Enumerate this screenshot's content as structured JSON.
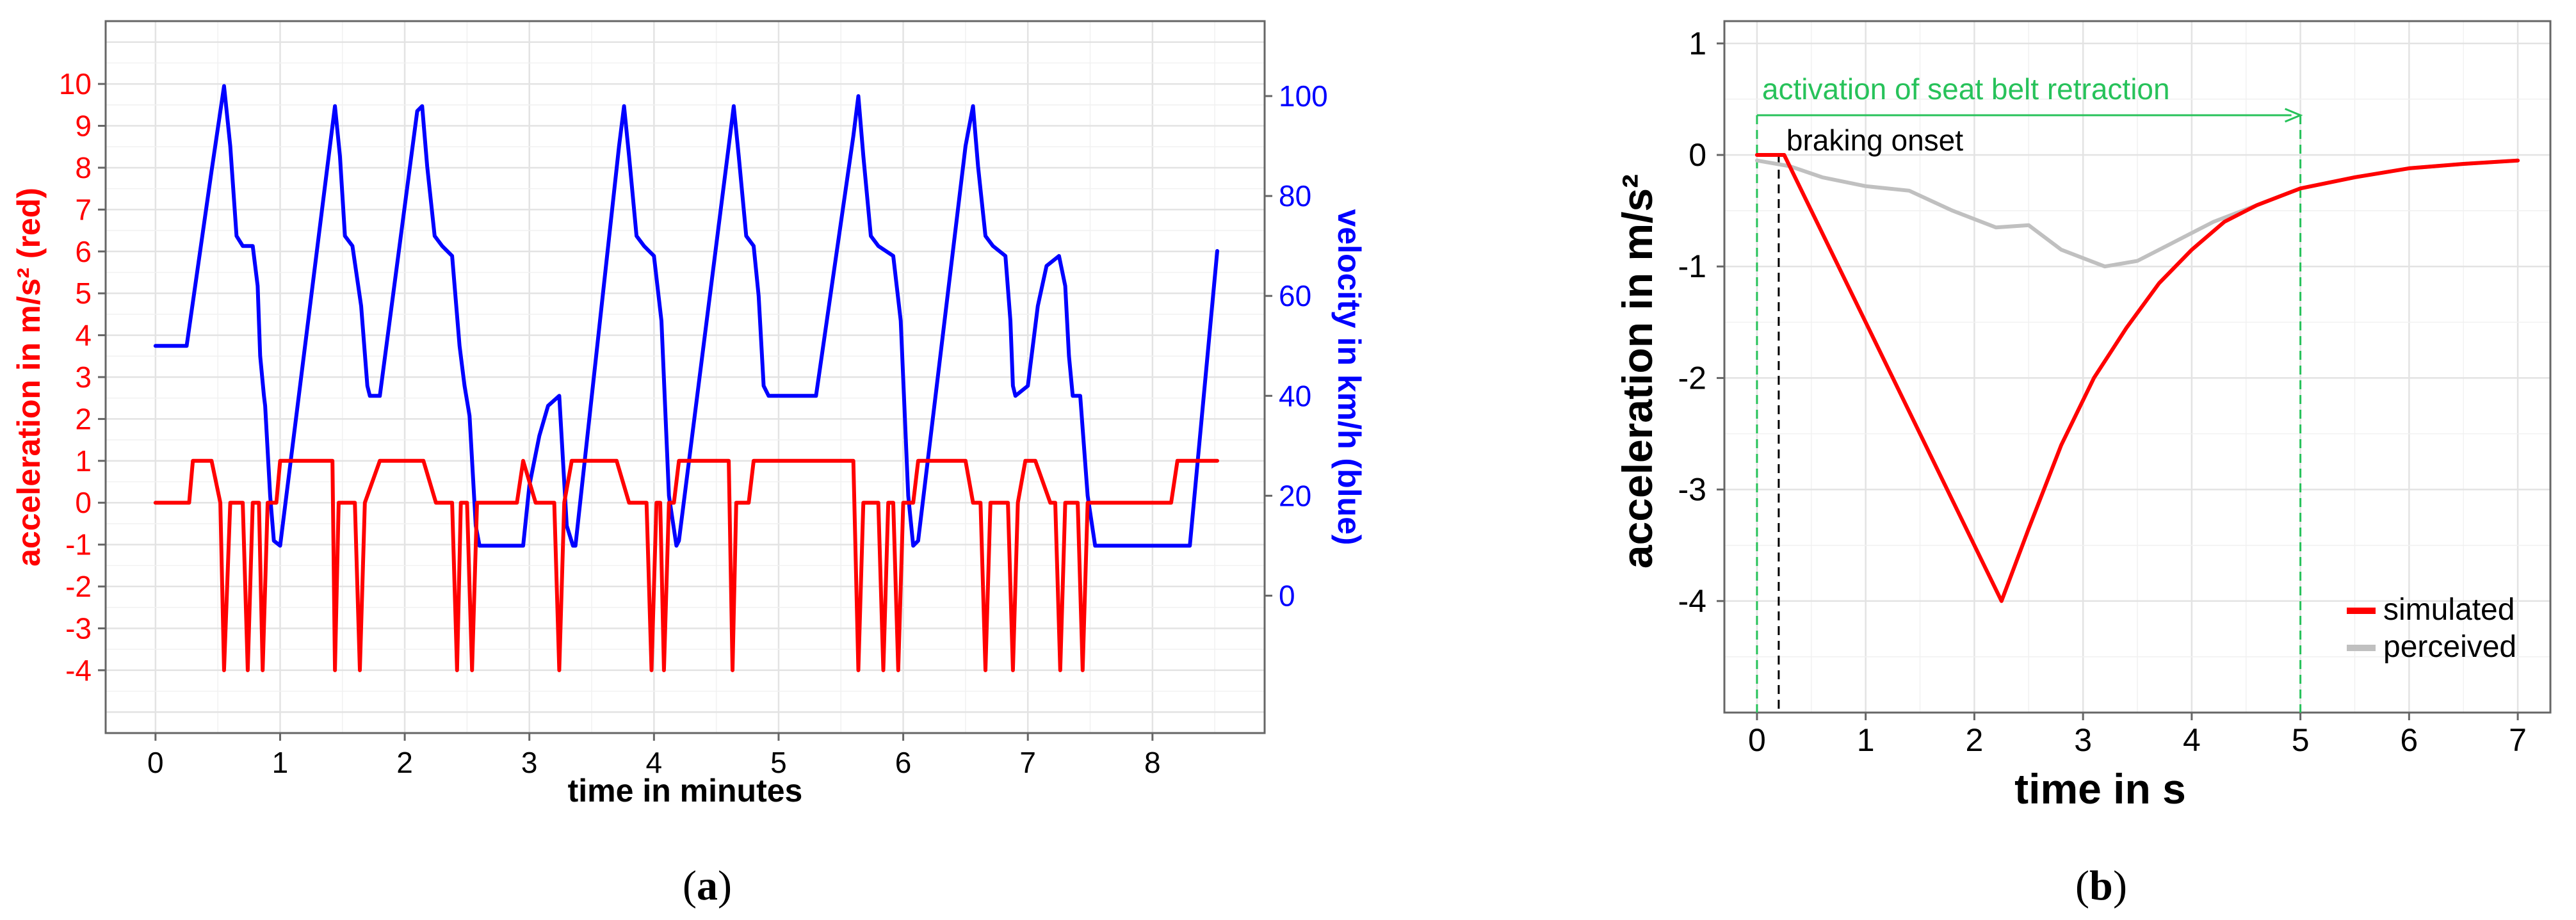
{
  "colors": {
    "red": "#ff0000",
    "blue": "#0000ff",
    "grid": "#e8e8e8",
    "frame": "#666666",
    "green": "#27c25a",
    "gray": "#c0c0c0",
    "black": "#000000"
  },
  "chart_data": [
    {
      "id": "a",
      "type": "line",
      "caption_letter": "a",
      "xlabel": "time in minutes",
      "ylabel_left": "acceleration in m/s² (red)",
      "ylabel_right": "velocity in km/h (blue)",
      "xlim": [
        -0.4,
        8.9
      ],
      "ylim_left": [
        -5.5,
        11.5
      ],
      "ylim_right": [
        -27.5,
        115
      ],
      "x_ticks": [
        0,
        1,
        2,
        3,
        4,
        5,
        6,
        7,
        8
      ],
      "y_left_ticks": [
        10,
        9,
        8,
        7,
        6,
        5,
        4,
        3,
        2,
        1,
        0,
        -1,
        -2,
        -3,
        -4
      ],
      "y_right_ticks": [
        100,
        80,
        60,
        40,
        20,
        0
      ],
      "grid": true,
      "series": [
        {
          "axis": "right",
          "color": "#0000ff",
          "points": [
            [
              0,
              50
            ],
            [
              0.25,
              50
            ],
            [
              0.45,
              85
            ],
            [
              0.55,
              102
            ],
            [
              0.6,
              90
            ],
            [
              0.65,
              72
            ],
            [
              0.7,
              70
            ],
            [
              0.78,
              70
            ],
            [
              0.82,
              62
            ],
            [
              0.84,
              48
            ],
            [
              0.87,
              40
            ],
            [
              0.88,
              38
            ],
            [
              0.92,
              20
            ],
            [
              0.95,
              11
            ],
            [
              1.0,
              10
            ],
            [
              1.4,
              90
            ],
            [
              1.44,
              98
            ],
            [
              1.48,
              88
            ],
            [
              1.52,
              72
            ],
            [
              1.58,
              70
            ],
            [
              1.65,
              58
            ],
            [
              1.7,
              42
            ],
            [
              1.72,
              40
            ],
            [
              1.8,
              40
            ],
            [
              2.1,
              97
            ],
            [
              2.14,
              98
            ],
            [
              2.18,
              86
            ],
            [
              2.24,
              72
            ],
            [
              2.3,
              70
            ],
            [
              2.38,
              68
            ],
            [
              2.44,
              50
            ],
            [
              2.48,
              42
            ],
            [
              2.52,
              36
            ],
            [
              2.57,
              14
            ],
            [
              2.6,
              10
            ],
            [
              2.95,
              10
            ],
            [
              3.0,
              22
            ],
            [
              3.08,
              32
            ],
            [
              3.15,
              38
            ],
            [
              3.24,
              40
            ],
            [
              3.3,
              14
            ],
            [
              3.35,
              10
            ],
            [
              3.37,
              10
            ],
            [
              3.72,
              90
            ],
            [
              3.76,
              98
            ],
            [
              3.8,
              88
            ],
            [
              3.86,
              72
            ],
            [
              3.92,
              70
            ],
            [
              4.0,
              68
            ],
            [
              4.06,
              55
            ],
            [
              4.12,
              20
            ],
            [
              4.18,
              10
            ],
            [
              4.2,
              11
            ],
            [
              4.6,
              90
            ],
            [
              4.64,
              98
            ],
            [
              4.68,
              88
            ],
            [
              4.74,
              72
            ],
            [
              4.8,
              70
            ],
            [
              4.84,
              60
            ],
            [
              4.88,
              42
            ],
            [
              4.92,
              40
            ],
            [
              5.3,
              40
            ],
            [
              5.6,
              92
            ],
            [
              5.64,
              100
            ],
            [
              5.68,
              88
            ],
            [
              5.74,
              72
            ],
            [
              5.8,
              70
            ],
            [
              5.92,
              68
            ],
            [
              5.98,
              55
            ],
            [
              6.04,
              20
            ],
            [
              6.08,
              10
            ],
            [
              6.12,
              11
            ],
            [
              6.5,
              90
            ],
            [
              6.56,
              98
            ],
            [
              6.6,
              86
            ],
            [
              6.66,
              72
            ],
            [
              6.72,
              70
            ],
            [
              6.82,
              68
            ],
            [
              6.86,
              55
            ],
            [
              6.88,
              42
            ],
            [
              6.9,
              40
            ],
            [
              7.0,
              42
            ],
            [
              7.08,
              58
            ],
            [
              7.15,
              66
            ],
            [
              7.25,
              68
            ],
            [
              7.3,
              62
            ],
            [
              7.33,
              48
            ],
            [
              7.36,
              40
            ],
            [
              7.42,
              40
            ],
            [
              7.48,
              20
            ],
            [
              7.54,
              10
            ],
            [
              7.6,
              10
            ],
            [
              8.3,
              10
            ],
            [
              8.52,
              69
            ]
          ]
        },
        {
          "axis": "left",
          "color": "#ff0000",
          "points": [
            [
              0,
              0
            ],
            [
              0.27,
              0
            ],
            [
              0.3,
              1
            ],
            [
              0.45,
              1
            ],
            [
              0.52,
              0
            ],
            [
              0.55,
              -4
            ],
            [
              0.6,
              0
            ],
            [
              0.7,
              0
            ],
            [
              0.74,
              -4
            ],
            [
              0.78,
              0
            ],
            [
              0.83,
              0
            ],
            [
              0.86,
              -4
            ],
            [
              0.9,
              0
            ],
            [
              0.97,
              0
            ],
            [
              1.0,
              1
            ],
            [
              1.42,
              1
            ],
            [
              1.44,
              -4
            ],
            [
              1.47,
              0
            ],
            [
              1.6,
              0
            ],
            [
              1.64,
              -4
            ],
            [
              1.68,
              0
            ],
            [
              1.8,
              1
            ],
            [
              2.15,
              1
            ],
            [
              2.25,
              0
            ],
            [
              2.38,
              0
            ],
            [
              2.42,
              -4
            ],
            [
              2.45,
              0
            ],
            [
              2.5,
              0
            ],
            [
              2.54,
              -4
            ],
            [
              2.58,
              0
            ],
            [
              2.9,
              0
            ],
            [
              2.95,
              1
            ],
            [
              3.05,
              0
            ],
            [
              3.2,
              0
            ],
            [
              3.24,
              -4
            ],
            [
              3.28,
              0
            ],
            [
              3.34,
              1
            ],
            [
              3.7,
              1
            ],
            [
              3.8,
              0
            ],
            [
              3.94,
              0
            ],
            [
              3.98,
              -4
            ],
            [
              4.02,
              0
            ],
            [
              4.05,
              0
            ],
            [
              4.08,
              -4
            ],
            [
              4.12,
              0
            ],
            [
              4.16,
              0
            ],
            [
              4.2,
              1
            ],
            [
              4.6,
              1
            ],
            [
              4.63,
              -4
            ],
            [
              4.66,
              0
            ],
            [
              4.76,
              0
            ],
            [
              4.8,
              1
            ],
            [
              5.6,
              1
            ],
            [
              5.64,
              -4
            ],
            [
              5.68,
              0
            ],
            [
              5.8,
              0
            ],
            [
              5.84,
              -4
            ],
            [
              5.88,
              0
            ],
            [
              5.92,
              0
            ],
            [
              5.96,
              -4
            ],
            [
              6.0,
              0
            ],
            [
              6.08,
              0
            ],
            [
              6.12,
              1
            ],
            [
              6.5,
              1
            ],
            [
              6.56,
              0
            ],
            [
              6.62,
              0
            ],
            [
              6.66,
              -4
            ],
            [
              6.7,
              0
            ],
            [
              6.84,
              0
            ],
            [
              6.88,
              -4
            ],
            [
              6.92,
              0
            ],
            [
              6.98,
              1
            ],
            [
              7.06,
              1
            ],
            [
              7.18,
              0
            ],
            [
              7.22,
              0
            ],
            [
              7.26,
              -4
            ],
            [
              7.3,
              0
            ],
            [
              7.4,
              0
            ],
            [
              7.44,
              -4
            ],
            [
              7.48,
              0
            ],
            [
              8.15,
              0
            ],
            [
              8.2,
              1
            ],
            [
              8.52,
              1
            ]
          ]
        }
      ]
    },
    {
      "id": "b",
      "type": "line",
      "caption_letter": "b",
      "xlabel": "time in s",
      "ylabel": "acceleration in m/s²",
      "xlim": [
        -0.3,
        7.3
      ],
      "ylim": [
        -5,
        1.2
      ],
      "x_ticks": [
        0,
        1,
        2,
        3,
        4,
        5,
        6,
        7
      ],
      "y_ticks": [
        1,
        0,
        -1,
        -2,
        -3,
        -4
      ],
      "grid": true,
      "legend_position": "bottom-right",
      "annotations": {
        "activation_label": "activation of seat belt retraction",
        "activation_start": 0,
        "activation_end": 5,
        "braking_label": "braking onset",
        "braking_onset": 0.2
      },
      "series": [
        {
          "name": "simulated",
          "color": "#ff0000",
          "points": [
            [
              0,
              0
            ],
            [
              0.25,
              0
            ],
            [
              2.25,
              -4
            ],
            [
              2.5,
              -3.35
            ],
            [
              2.8,
              -2.6
            ],
            [
              3.1,
              -2.0
            ],
            [
              3.4,
              -1.55
            ],
            [
              3.7,
              -1.15
            ],
            [
              4.0,
              -0.85
            ],
            [
              4.3,
              -0.6
            ],
            [
              4.6,
              -0.45
            ],
            [
              5.0,
              -0.3
            ],
            [
              5.5,
              -0.2
            ],
            [
              6.0,
              -0.12
            ],
            [
              6.5,
              -0.08
            ],
            [
              7.0,
              -0.05
            ]
          ]
        },
        {
          "name": "perceived",
          "color": "#c0c0c0",
          "points": [
            [
              0,
              -0.05
            ],
            [
              0.3,
              -0.1
            ],
            [
              0.6,
              -0.2
            ],
            [
              1.0,
              -0.28
            ],
            [
              1.4,
              -0.32
            ],
            [
              1.8,
              -0.5
            ],
            [
              2.2,
              -0.65
            ],
            [
              2.5,
              -0.63
            ],
            [
              2.8,
              -0.85
            ],
            [
              3.2,
              -1.0
            ],
            [
              3.5,
              -0.95
            ],
            [
              3.8,
              -0.8
            ],
            [
              4.2,
              -0.6
            ],
            [
              4.6,
              -0.45
            ],
            [
              5.0,
              -0.3
            ],
            [
              5.5,
              -0.2
            ],
            [
              6.0,
              -0.12
            ],
            [
              6.5,
              -0.08
            ],
            [
              7.0,
              -0.05
            ]
          ]
        }
      ]
    }
  ]
}
